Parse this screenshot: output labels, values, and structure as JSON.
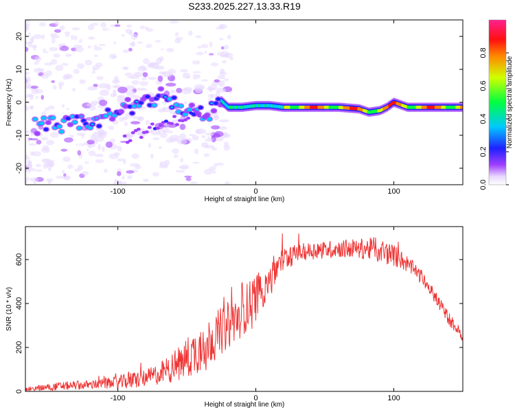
{
  "chart_data": [
    {
      "type": "heatmap",
      "title": "S233.2025.227.13.33.R19",
      "xlabel": "Height of straight line (km)",
      "ylabel": "Frequency (Hz)",
      "xlim": [
        -167,
        150
      ],
      "ylim": [
        -25,
        25
      ],
      "xticks": [
        -100,
        0,
        100
      ],
      "xtick_labels": [
        "-100",
        "0",
        "100"
      ],
      "yticks": [
        -20,
        -10,
        0,
        10,
        20
      ],
      "ytick_labels": [
        "-20",
        "-10",
        "0",
        "10",
        "20"
      ],
      "ridge": {
        "x": [
          -155,
          -140,
          -125,
          -110,
          -95,
          -85,
          -75,
          -65,
          -55,
          -45,
          -35,
          -25,
          -20,
          -10,
          0,
          10,
          20,
          40,
          60,
          75,
          82,
          90,
          95,
          100,
          110,
          130,
          150
        ],
        "y": [
          -7,
          -7,
          -6.5,
          -5,
          -2,
          0,
          1,
          3,
          -3,
          -2,
          -4,
          0.5,
          -1.5,
          -1.5,
          -1,
          -1,
          -1.5,
          -1.5,
          -1.5,
          -2,
          -3,
          -2.5,
          -1.5,
          0,
          -1.5,
          -1.5,
          -1.5
        ]
      },
      "colorbar": {
        "label": "Normalized spectral amplitude",
        "ticks": [
          0.0,
          0.2,
          0.4,
          0.6,
          0.8
        ],
        "tick_labels": [
          "0.0",
          "0.2",
          "0.4",
          "0.6",
          "0.8"
        ]
      }
    },
    {
      "type": "line",
      "title": "",
      "xlabel": "Height of straight line (km)",
      "ylabel": "SNR (10 * v/v)",
      "xlim": [
        -167,
        150
      ],
      "ylim": [
        0,
        750
      ],
      "xticks": [
        -100,
        0,
        100
      ],
      "xtick_labels": [
        "-100",
        "0",
        "100"
      ],
      "yticks": [
        0,
        200,
        400,
        600
      ],
      "ytick_labels": [
        "0",
        "200",
        "400",
        "600"
      ],
      "series": [
        {
          "name": "SNR",
          "color": "#ee3333",
          "envelope_x": [
            -167,
            -140,
            -120,
            -100,
            -90,
            -80,
            -70,
            -60,
            -50,
            -40,
            -30,
            -20,
            -10,
            0,
            10,
            20,
            30,
            40,
            60,
            80,
            90,
            100,
            110,
            120,
            130,
            140,
            150
          ],
          "envelope_mean": [
            10,
            25,
            30,
            40,
            50,
            60,
            80,
            110,
            150,
            200,
            250,
            300,
            360,
            430,
            520,
            600,
            630,
            640,
            650,
            650,
            640,
            620,
            580,
            520,
            430,
            330,
            250
          ],
          "envelope_jitter": [
            10,
            20,
            20,
            30,
            40,
            40,
            50,
            70,
            100,
            110,
            110,
            110,
            110,
            110,
            90,
            60,
            40,
            40,
            40,
            50,
            60,
            50,
            40,
            30,
            30,
            30,
            25
          ]
        }
      ]
    }
  ]
}
